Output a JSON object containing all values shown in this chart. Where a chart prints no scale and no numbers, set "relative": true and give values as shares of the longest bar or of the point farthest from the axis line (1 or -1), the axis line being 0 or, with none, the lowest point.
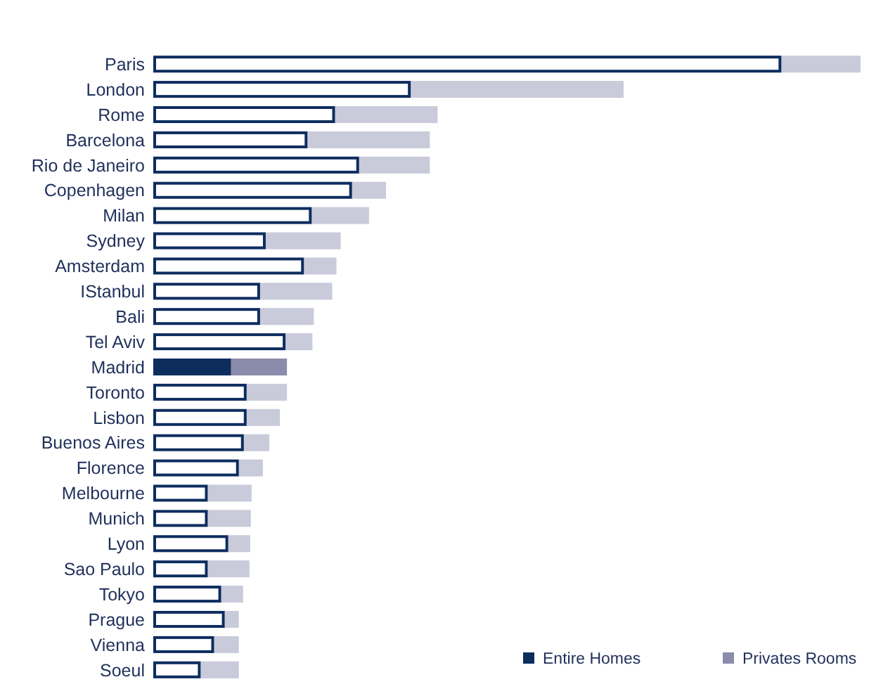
{
  "chart_data": {
    "type": "bar",
    "orientation": "horizontal",
    "stacked": true,
    "relative": true,
    "legend": "bottom right",
    "categories": [
      "Paris",
      "London",
      "Rome",
      "Barcelona",
      "Rio de Janeiro",
      "Copenhagen",
      "Milan",
      "Sydney",
      "Amsterdam",
      "IStanbul",
      "Bali",
      "Tel Aviv",
      "Madrid",
      "Toronto",
      "Lisbon",
      "Buenos Aires",
      "Florence",
      "Melbourne",
      "Munich",
      "Lyon",
      "Sao Paulo",
      "Tokyo",
      "Prague",
      "Vienna",
      "Soeul"
    ],
    "series": [
      {
        "name": "Entire Homes",
        "color": "#0d2d5e",
        "colors": [
          "#ffffff",
          "#ffffff",
          "#ffffff",
          "#ffffff",
          "#ffffff",
          "#ffffff",
          "#ffffff",
          "#ffffff",
          "#ffffff",
          "#ffffff",
          "#ffffff",
          "#ffffff",
          "#0d2d5e",
          "#ffffff",
          "#ffffff",
          "#ffffff",
          "#ffffff",
          "#ffffff",
          "#ffffff",
          "#ffffff",
          "#ffffff",
          "#ffffff",
          "#ffffff",
          "#ffffff",
          "#ffffff"
        ],
        "values": [
          0.888,
          0.364,
          0.257,
          0.218,
          0.291,
          0.281,
          0.224,
          0.159,
          0.213,
          0.151,
          0.151,
          0.187,
          0.11,
          0.132,
          0.132,
          0.128,
          0.121,
          0.077,
          0.077,
          0.106,
          0.077,
          0.096,
          0.101,
          0.086,
          0.067
        ]
      },
      {
        "name": "Privates Rooms",
        "color": "#8b8cab",
        "colors": [
          "#c9cbdb",
          "#c9cbdb",
          "#c9cbdb",
          "#c9cbdb",
          "#c9cbdb",
          "#c9cbdb",
          "#c9cbdb",
          "#c9cbdb",
          "#c9cbdb",
          "#c9cbdb",
          "#c9cbdb",
          "#c9cbdb",
          "#8b8cab",
          "#c9cbdb",
          "#c9cbdb",
          "#c9cbdb",
          "#c9cbdb",
          "#c9cbdb",
          "#c9cbdb",
          "#c9cbdb",
          "#c9cbdb",
          "#c9cbdb",
          "#c9cbdb",
          "#c9cbdb",
          "#c9cbdb"
        ],
        "values": [
          0.112,
          0.301,
          0.145,
          0.173,
          0.1,
          0.048,
          0.081,
          0.106,
          0.046,
          0.102,
          0.076,
          0.038,
          0.079,
          0.057,
          0.047,
          0.036,
          0.034,
          0.062,
          0.061,
          0.031,
          0.059,
          0.031,
          0.02,
          0.035,
          0.054
        ]
      }
    ]
  }
}
